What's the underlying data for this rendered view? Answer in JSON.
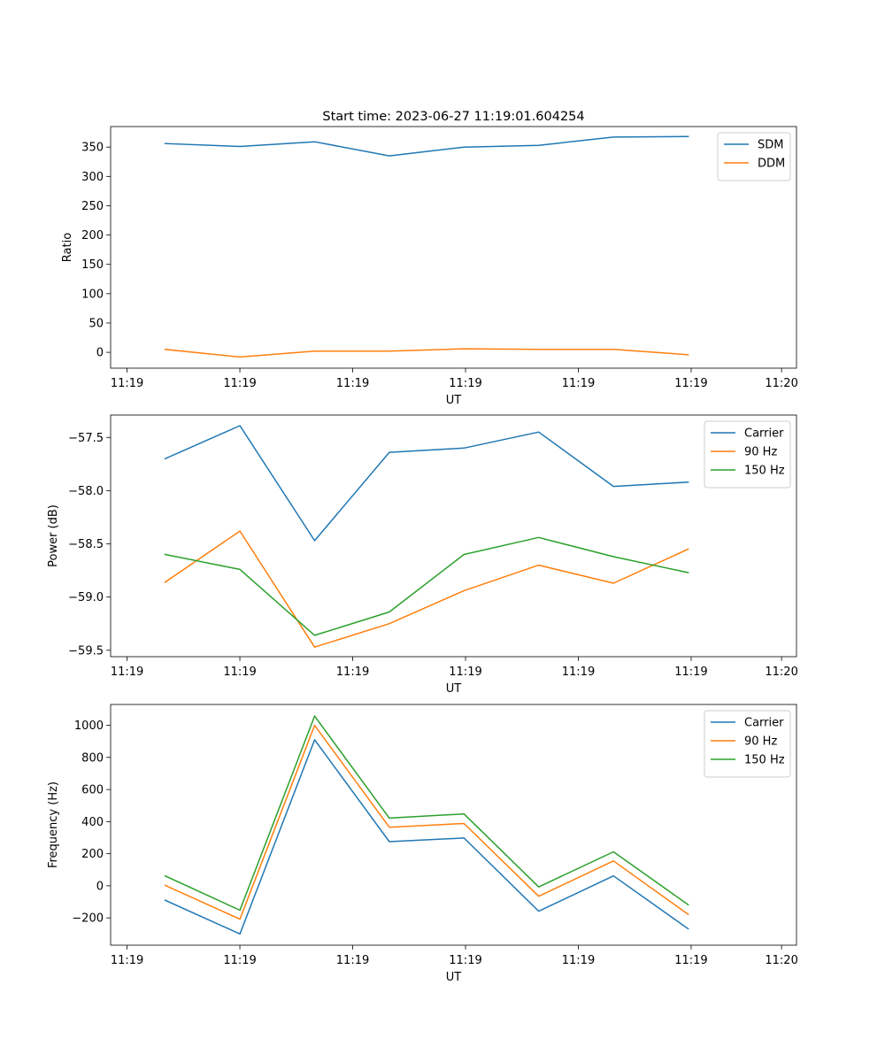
{
  "figure": {
    "title": "Start time: 2023-06-27 11:19:01.604254"
  },
  "chart_data": [
    {
      "type": "line",
      "xlabel": "UT",
      "ylabel": "Ratio",
      "x_tick_labels": [
        "11:19",
        "11:19",
        "11:19",
        "11:19",
        "11:19",
        "11:19",
        "11:20"
      ],
      "x": [
        1,
        2,
        3,
        4,
        5,
        6,
        7,
        8
      ],
      "xlim": [
        0.27,
        9.45
      ],
      "ylim": [
        -27,
        385
      ],
      "yticks": [
        0,
        50,
        100,
        150,
        200,
        250,
        300,
        350
      ],
      "grid": false,
      "legend": "top-right",
      "series": [
        {
          "name": "SDM",
          "color": "#1f77b4",
          "values": [
            356,
            351,
            359,
            335,
            350,
            353,
            367,
            368
          ]
        },
        {
          "name": "DDM",
          "color": "#ff7f0e",
          "values": [
            5,
            -8,
            2,
            2,
            6,
            5,
            5,
            -4
          ]
        }
      ]
    },
    {
      "type": "line",
      "xlabel": "UT",
      "ylabel": "Power (dB)",
      "x_tick_labels": [
        "11:19",
        "11:19",
        "11:19",
        "11:19",
        "11:19",
        "11:19",
        "11:20"
      ],
      "x": [
        1,
        2,
        3,
        4,
        5,
        6,
        7,
        8
      ],
      "xlim": [
        0.27,
        9.45
      ],
      "ylim": [
        -59.56,
        -57.29
      ],
      "yticks": [
        -59.5,
        -59.0,
        -58.5,
        -58.0,
        -57.5
      ],
      "ytick_labels": [
        "−59.5",
        "−59.0",
        "−58.5",
        "−58.0",
        "−57.5"
      ],
      "grid": false,
      "legend": "top-right",
      "series": [
        {
          "name": "Carrier",
          "color": "#1f77b4",
          "values": [
            -57.7,
            -57.39,
            -58.47,
            -57.64,
            -57.6,
            -57.45,
            -57.96,
            -57.92
          ]
        },
        {
          "name": "90 Hz",
          "color": "#ff7f0e",
          "values": [
            -58.86,
            -58.38,
            -59.47,
            -59.25,
            -58.94,
            -58.7,
            -58.87,
            -58.55
          ]
        },
        {
          "name": "150 Hz",
          "color": "#2ca02c",
          "values": [
            -58.6,
            -58.74,
            -59.36,
            -59.14,
            -58.6,
            -58.44,
            -58.62,
            -58.77
          ]
        }
      ]
    },
    {
      "type": "line",
      "xlabel": "UT",
      "ylabel": "Frequency (Hz)",
      "x_tick_labels": [
        "11:19",
        "11:19",
        "11:19",
        "11:19",
        "11:19",
        "11:19",
        "11:20"
      ],
      "x": [
        1,
        2,
        3,
        4,
        5,
        6,
        7,
        8
      ],
      "xlim": [
        0.27,
        9.45
      ],
      "ylim": [
        -370,
        1130
      ],
      "yticks": [
        -200,
        0,
        200,
        400,
        600,
        800,
        1000
      ],
      "ytick_labels": [
        "−200",
        "0",
        "200",
        "400",
        "600",
        "800",
        "1000"
      ],
      "grid": false,
      "legend": "top-right",
      "series": [
        {
          "name": "Carrier",
          "color": "#1f77b4",
          "values": [
            -90,
            -300,
            910,
            275,
            298,
            -158,
            62,
            -268
          ]
        },
        {
          "name": "90 Hz",
          "color": "#ff7f0e",
          "values": [
            3,
            -208,
            1000,
            365,
            388,
            -65,
            155,
            -178
          ]
        },
        {
          "name": "150 Hz",
          "color": "#2ca02c",
          "values": [
            62,
            -152,
            1058,
            422,
            448,
            -7,
            212,
            -118
          ]
        }
      ]
    }
  ]
}
